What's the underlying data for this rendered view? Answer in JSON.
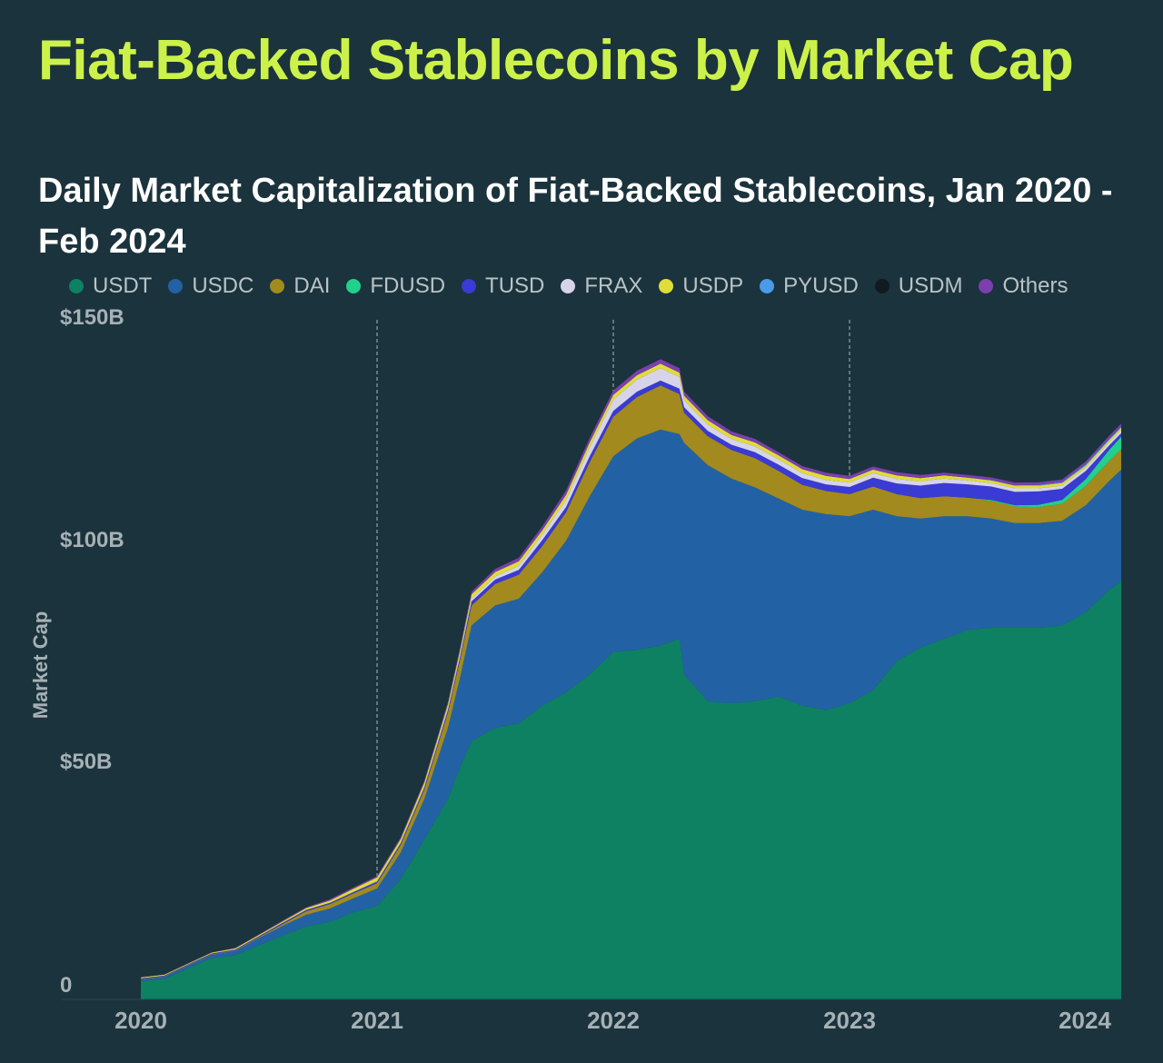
{
  "title": "Fiat-Backed Stablecoins by Market Cap",
  "subtitle": "Daily Market Capitalization of Fiat-Backed Stablecoins, Jan 2020 - Feb 2024",
  "chart_data": {
    "type": "area",
    "stacked": true,
    "title": "Fiat-Backed Stablecoins by Market Cap",
    "subtitle": "Daily Market Capitalization of Fiat-Backed Stablecoins, Jan 2020 - Feb 2024",
    "xlabel": "",
    "ylabel": "Market Cap",
    "xlim": [
      2020.0,
      2024.15
    ],
    "ylim": [
      0,
      150
    ],
    "y_unit": "billion USD",
    "y_ticks": [
      {
        "value": 0,
        "label": "0"
      },
      {
        "value": 50,
        "label": "$50B"
      },
      {
        "value": 100,
        "label": "$100B"
      },
      {
        "value": 150,
        "label": "$150B"
      }
    ],
    "x_ticks": [
      {
        "value": 2020,
        "label": "2020"
      },
      {
        "value": 2021,
        "label": "2021"
      },
      {
        "value": 2022,
        "label": "2022"
      },
      {
        "value": 2023,
        "label": "2023"
      },
      {
        "value": 2024,
        "label": "2024"
      }
    ],
    "vertical_gridlines": [
      2021,
      2022,
      2023
    ],
    "x": [
      2020.0,
      2020.1,
      2020.2,
      2020.3,
      2020.4,
      2020.5,
      2020.6,
      2020.7,
      2020.8,
      2020.9,
      2021.0,
      2021.1,
      2021.2,
      2021.3,
      2021.35,
      2021.4,
      2021.5,
      2021.6,
      2021.7,
      2021.8,
      2021.9,
      2022.0,
      2022.1,
      2022.2,
      2022.28,
      2022.3,
      2022.4,
      2022.5,
      2022.6,
      2022.7,
      2022.8,
      2022.9,
      2023.0,
      2023.1,
      2023.2,
      2023.3,
      2023.4,
      2023.5,
      2023.6,
      2023.7,
      2023.8,
      2023.9,
      2024.0,
      2024.1,
      2024.15
    ],
    "series": [
      {
        "name": "USDT",
        "color": "#0e8163",
        "values": [
          4.1,
          4.6,
          7.0,
          9.3,
          9.9,
          12.2,
          14.3,
          16.4,
          17.4,
          19.6,
          21.0,
          27.0,
          36.0,
          45.0,
          52.0,
          58.0,
          61.0,
          62.0,
          66.0,
          69.0,
          73.0,
          78.0,
          78.5,
          79.5,
          81.0,
          73.0,
          67.0,
          66.5,
          67.0,
          68.0,
          66.0,
          65.0,
          66.5,
          69.5,
          76.0,
          79.0,
          81.0,
          83.0,
          83.5,
          83.5,
          83.5,
          84.0,
          87.0,
          92.0,
          94.0
        ]
      },
      {
        "name": "USDC",
        "color": "#2262a4",
        "values": [
          0.4,
          0.5,
          0.6,
          0.7,
          1.0,
          1.6,
          2.2,
          2.6,
          3.0,
          3.1,
          3.9,
          6.0,
          9.0,
          16.0,
          20.0,
          26.0,
          27.5,
          28.0,
          30.0,
          34.0,
          40.0,
          44.0,
          47.5,
          48.5,
          46.0,
          52.0,
          53.0,
          50.5,
          48.0,
          44.5,
          44.0,
          44.0,
          42.0,
          40.5,
          32.5,
          29.0,
          27.5,
          25.5,
          24.5,
          23.5,
          23.5,
          23.5,
          24.0,
          24.5,
          25.0
        ]
      },
      {
        "name": "DAI",
        "color": "#a28a1f",
        "values": [
          0.1,
          0.1,
          0.1,
          0.1,
          0.1,
          0.2,
          0.4,
          0.8,
          1.0,
          1.1,
          1.2,
          1.7,
          2.1,
          3.4,
          4.0,
          4.5,
          4.8,
          5.4,
          5.9,
          6.4,
          7.7,
          8.9,
          9.3,
          9.9,
          9.0,
          6.8,
          6.5,
          6.4,
          6.6,
          6.2,
          5.6,
          5.2,
          5.0,
          5.2,
          5.0,
          4.6,
          4.5,
          4.2,
          4.0,
          3.7,
          3.6,
          3.8,
          4.3,
          4.5,
          4.6
        ]
      },
      {
        "name": "FDUSD",
        "color": "#22d08c",
        "values": [
          0,
          0,
          0,
          0,
          0,
          0,
          0,
          0,
          0,
          0,
          0,
          0,
          0,
          0,
          0,
          0,
          0,
          0,
          0,
          0,
          0,
          0,
          0,
          0,
          0,
          0,
          0,
          0,
          0,
          0,
          0,
          0,
          0,
          0,
          0,
          0,
          0,
          0,
          0.2,
          0.3,
          0.5,
          0.9,
          1.6,
          2.5,
          2.8
        ]
      },
      {
        "name": "TUSD",
        "color": "#3a3ad4",
        "values": [
          0.15,
          0.15,
          0.15,
          0.2,
          0.2,
          0.2,
          0.3,
          0.3,
          0.3,
          0.3,
          0.4,
          0.4,
          0.5,
          0.6,
          0.7,
          0.9,
          1.0,
          1.1,
          1.3,
          1.2,
          1.3,
          1.3,
          1.2,
          1.1,
          1.2,
          1.2,
          1.2,
          1.2,
          1.3,
          1.4,
          1.5,
          1.5,
          1.6,
          2.0,
          2.4,
          2.8,
          3.0,
          3.0,
          3.0,
          3.0,
          3.0,
          2.5,
          1.8,
          1.0,
          0.8
        ]
      },
      {
        "name": "FRAX",
        "color": "#d7d4ea",
        "values": [
          0,
          0,
          0,
          0,
          0,
          0,
          0,
          0,
          0,
          0.05,
          0.1,
          0.1,
          0.2,
          0.4,
          0.5,
          0.6,
          0.7,
          0.9,
          1.2,
          1.6,
          2.0,
          2.5,
          2.7,
          2.8,
          2.6,
          1.6,
          1.4,
          1.3,
          1.3,
          1.2,
          1.1,
          1.0,
          1.0,
          1.0,
          1.0,
          1.0,
          1.0,
          0.9,
          0.8,
          0.8,
          0.7,
          0.7,
          0.7,
          0.7,
          0.7
        ]
      },
      {
        "name": "USDP",
        "color": "#e0dc3a",
        "values": [
          0.2,
          0.2,
          0.2,
          0.2,
          0.3,
          0.3,
          0.3,
          0.4,
          0.5,
          0.7,
          0.8,
          0.8,
          0.9,
          0.9,
          0.9,
          1.0,
          1.0,
          1.0,
          1.0,
          1.1,
          1.1,
          1.1,
          1.0,
          1.0,
          1.0,
          1.0,
          1.0,
          0.9,
          0.9,
          0.9,
          0.9,
          0.9,
          0.8,
          0.8,
          0.8,
          0.7,
          0.7,
          0.6,
          0.6,
          0.6,
          0.6,
          0.6,
          0.5,
          0.5,
          0.5
        ]
      },
      {
        "name": "PYUSD",
        "color": "#4a9ae8",
        "values": [
          0,
          0,
          0,
          0,
          0,
          0,
          0,
          0,
          0,
          0,
          0,
          0,
          0,
          0,
          0,
          0,
          0,
          0,
          0,
          0,
          0,
          0,
          0,
          0,
          0,
          0,
          0,
          0,
          0,
          0,
          0,
          0,
          0,
          0,
          0,
          0,
          0,
          0,
          0.05,
          0.1,
          0.15,
          0.2,
          0.3,
          0.3,
          0.3
        ]
      },
      {
        "name": "USDM",
        "color": "#0f1b20",
        "values": [
          0,
          0,
          0,
          0,
          0,
          0,
          0,
          0,
          0,
          0,
          0,
          0,
          0,
          0,
          0,
          0,
          0,
          0,
          0,
          0,
          0,
          0,
          0,
          0,
          0,
          0,
          0,
          0,
          0,
          0,
          0,
          0,
          0,
          0,
          0,
          0,
          0,
          0,
          0,
          0,
          0,
          0,
          0.02,
          0.05,
          0.05
        ]
      },
      {
        "name": "Others",
        "color": "#7b3fae",
        "values": [
          0.05,
          0.05,
          0.05,
          0.05,
          0.1,
          0.1,
          0.2,
          0.2,
          0.3,
          0.3,
          0.3,
          0.4,
          0.4,
          0.5,
          0.6,
          0.6,
          0.7,
          0.8,
          0.9,
          1.0,
          1.0,
          1.0,
          1.0,
          1.0,
          1.0,
          0.9,
          0.9,
          0.8,
          0.8,
          0.7,
          0.7,
          0.7,
          0.7,
          0.7,
          0.7,
          0.7,
          0.6,
          0.6,
          0.6,
          0.6,
          0.6,
          0.6,
          0.6,
          0.6,
          0.6
        ]
      }
    ]
  }
}
